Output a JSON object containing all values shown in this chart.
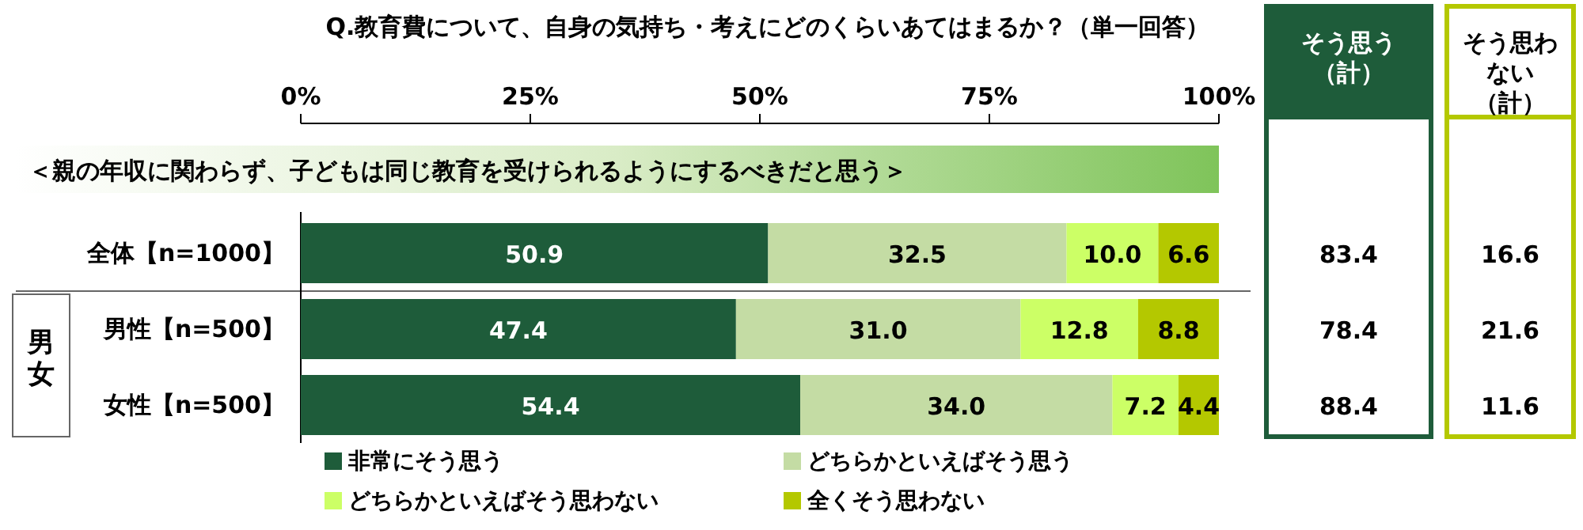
{
  "chart_data": {
    "type": "bar",
    "orientation": "horizontal",
    "stacked": true,
    "title": "Q.教育費について、自身の気持ち・考えにどのくらいあてはまるか？（単一回答）",
    "subtitle": "＜親の年収に関わらず、子どもは同じ教育を受けられるようにするべきだと思う＞",
    "categories": [
      "全体【n=1000】",
      "男性【n=500】",
      "女性【n=500】"
    ],
    "series": [
      {
        "name": "非常にそう思う",
        "color": "#1e5c3a",
        "values": [
          50.9,
          47.4,
          54.4
        ],
        "value_labels": [
          "50.9",
          "47.4",
          "54.4"
        ]
      },
      {
        "name": "どちらかといえばそう思う",
        "color": "#c4dca4",
        "values": [
          32.5,
          31.0,
          34.0
        ],
        "value_labels": [
          "32.5",
          "31.0",
          "34.0"
        ]
      },
      {
        "name": "どちらかといえばそう思わない",
        "color": "#ccff66",
        "values": [
          10.0,
          12.8,
          7.2
        ],
        "value_labels": [
          "10.0",
          "12.8",
          "7.2"
        ]
      },
      {
        "name": "全くそう思わない",
        "color": "#b4c800",
        "values": [
          6.6,
          8.8,
          4.4
        ],
        "value_labels": [
          "6.6",
          "8.8",
          "4.4"
        ]
      }
    ],
    "xlim": [
      0,
      100
    ],
    "xticks": [
      {
        "value": 0,
        "label": "0%"
      },
      {
        "value": 25,
        "label": "25%"
      },
      {
        "value": 50,
        "label": "50%"
      },
      {
        "value": 75,
        "label": "75%"
      },
      {
        "value": 100,
        "label": "100%"
      }
    ],
    "legend": "bottom",
    "annotations": [
      "男女",
      "そう思う（計）",
      "そう思わない（計）",
      "83.4",
      "78.4",
      "88.4",
      "16.6",
      "21.6",
      "11.6"
    ]
  }
}
